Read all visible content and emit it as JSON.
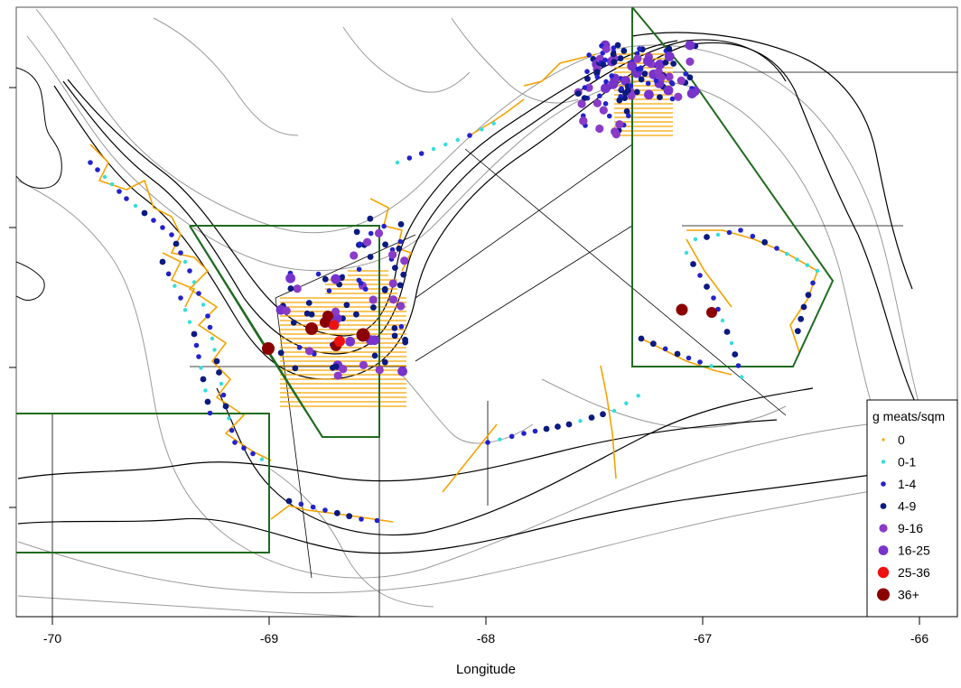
{
  "x_axis": {
    "title": "Longitude",
    "ticks": [
      -70,
      -69,
      -68,
      -67,
      -66
    ],
    "range": [
      -70.25,
      -65.88
    ]
  },
  "legend": {
    "title": "g meats/sqm",
    "placement": "bottom-right",
    "entries": [
      {
        "label": "0",
        "color": "#f5a300"
      },
      {
        "label": "0-1",
        "color": "#33dddd"
      },
      {
        "label": "1-4",
        "color": "#2222cc"
      },
      {
        "label": "4-9",
        "color": "#0a1a80"
      },
      {
        "label": "9-16",
        "color": "#8a3cc8"
      },
      {
        "label": "16-25",
        "color": "#7733cc"
      },
      {
        "label": "25-36",
        "color": "#ee1111"
      },
      {
        "label": "36+",
        "color": "#8b0000"
      }
    ]
  },
  "colors": {
    "management_area": "#1f6b1f",
    "depth_contour": "#000000",
    "grid_line": "#000000",
    "dredge_track": "#f5a300"
  }
}
